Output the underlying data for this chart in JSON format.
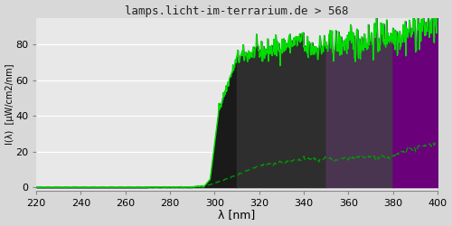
{
  "title": "lamps.licht-im-terrarium.de > 568",
  "xlabel": "λ [nm]",
  "ylabel": "I(λ)  [μW/cm2/nm]",
  "xlim": [
    220,
    400
  ],
  "ylim": [
    -2,
    95
  ],
  "yticks": [
    0,
    20,
    40,
    60,
    80
  ],
  "xticks": [
    220,
    240,
    260,
    280,
    300,
    320,
    340,
    360,
    380,
    400
  ],
  "bg_color": "#d8d8d8",
  "plot_bg_color": "#e8e8e8",
  "region_colors": [
    "#1a1a1a",
    "#2e2e2e",
    "#4a3550",
    "#6a007a"
  ],
  "region_boundaries": [
    220,
    310,
    350,
    380,
    400
  ],
  "line1_color": "#00dd00",
  "line2_color": "#009900"
}
